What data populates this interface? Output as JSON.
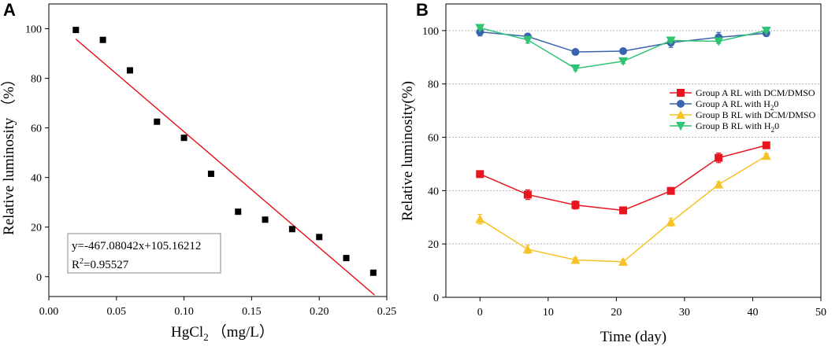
{
  "chart_data": [
    {
      "panel_label": "A",
      "type": "scatter",
      "xlabel": "HgCl",
      "xlabel_sub": "2",
      "xlabel_unit": "（mg/L）",
      "ylabel": "Relative luminosity （%）",
      "xlim": [
        0.0,
        0.25
      ],
      "ylim": [
        -8,
        110
      ],
      "x_ticks": [
        "0.00",
        "0.05",
        "0.10",
        "0.15",
        "0.20",
        "0.25"
      ],
      "y_ticks": [
        "0",
        "20",
        "40",
        "60",
        "80",
        "100"
      ],
      "points": {
        "x": [
          0.02,
          0.04,
          0.06,
          0.08,
          0.1,
          0.12,
          0.14,
          0.16,
          0.18,
          0.2,
          0.22,
          0.24
        ],
        "y": [
          99.5,
          95.5,
          83.2,
          62.5,
          56.0,
          41.5,
          26.2,
          23.0,
          19.2,
          16.0,
          7.5,
          1.6
        ]
      },
      "fit_line": {
        "slope": -467.08042,
        "intercept": 105.16212,
        "x_range": [
          0.02,
          0.241
        ],
        "color": "#e8000b"
      },
      "equation_line1": "y=-467.08042x+105.16212",
      "equation_r2_prefix": "R",
      "equation_r2_sup": "2",
      "equation_r2_value": "=0.95527"
    },
    {
      "panel_label": "B",
      "type": "line",
      "xlabel": "Time (day)",
      "ylabel": "Relative luminosity(%)",
      "xlim": [
        -5,
        50
      ],
      "ylim": [
        0,
        110
      ],
      "x_ticks": [
        "0",
        "10",
        "20",
        "30",
        "40",
        "50"
      ],
      "y_ticks": [
        "0",
        "20",
        "40",
        "60",
        "80",
        "100"
      ],
      "grid_y": [
        20,
        40,
        60,
        80,
        100
      ],
      "x": [
        0,
        7,
        14,
        21,
        28,
        35,
        42
      ],
      "series": [
        {
          "name": "Group A RL with DCM/DMSO",
          "legend_base": "Group A RL with DCM/DMSO",
          "legend_sub": "",
          "legend_tail": "",
          "color": "#e8141e",
          "marker": "square",
          "values": [
            46.2,
            38.5,
            34.6,
            32.6,
            39.9,
            52.3,
            57.0
          ],
          "errors": [
            0.5,
            1.8,
            1.5,
            0.8,
            0.6,
            1.8,
            0.5
          ]
        },
        {
          "name": "Group A RL with H20",
          "legend_base": "Group A RL with H",
          "legend_sub": "2",
          "legend_tail": "0",
          "color": "#3a64ad",
          "marker": "circle",
          "values": [
            99.5,
            97.8,
            92.0,
            92.3,
            95.5,
            97.5,
            99.0
          ],
          "errors": [
            1.5,
            1.0,
            0.5,
            0.5,
            1.8,
            1.8,
            1.0
          ]
        },
        {
          "name": "Group B RL with DCM/DMSO",
          "legend_base": "Group B RL with DCM/DMSO",
          "legend_sub": "",
          "legend_tail": "",
          "color": "#f6c225",
          "marker": "triangle-up",
          "values": [
            29.3,
            18.0,
            14.0,
            13.3,
            28.2,
            42.3,
            53.0
          ],
          "errors": [
            1.8,
            1.5,
            0.8,
            0.8,
            1.5,
            1.0,
            0.8
          ]
        },
        {
          "name": "Group B RL with H20",
          "legend_base": "Group B RL with H",
          "legend_sub": "2",
          "legend_tail": "0",
          "color": "#2ec472",
          "marker": "triangle-down",
          "values": [
            101.0,
            96.5,
            85.8,
            88.5,
            96.3,
            96.0,
            100.0
          ],
          "errors": [
            0.5,
            1.2,
            0.8,
            0.8,
            0.8,
            0.8,
            0.5
          ]
        }
      ],
      "legend_position": "center-right"
    }
  ]
}
